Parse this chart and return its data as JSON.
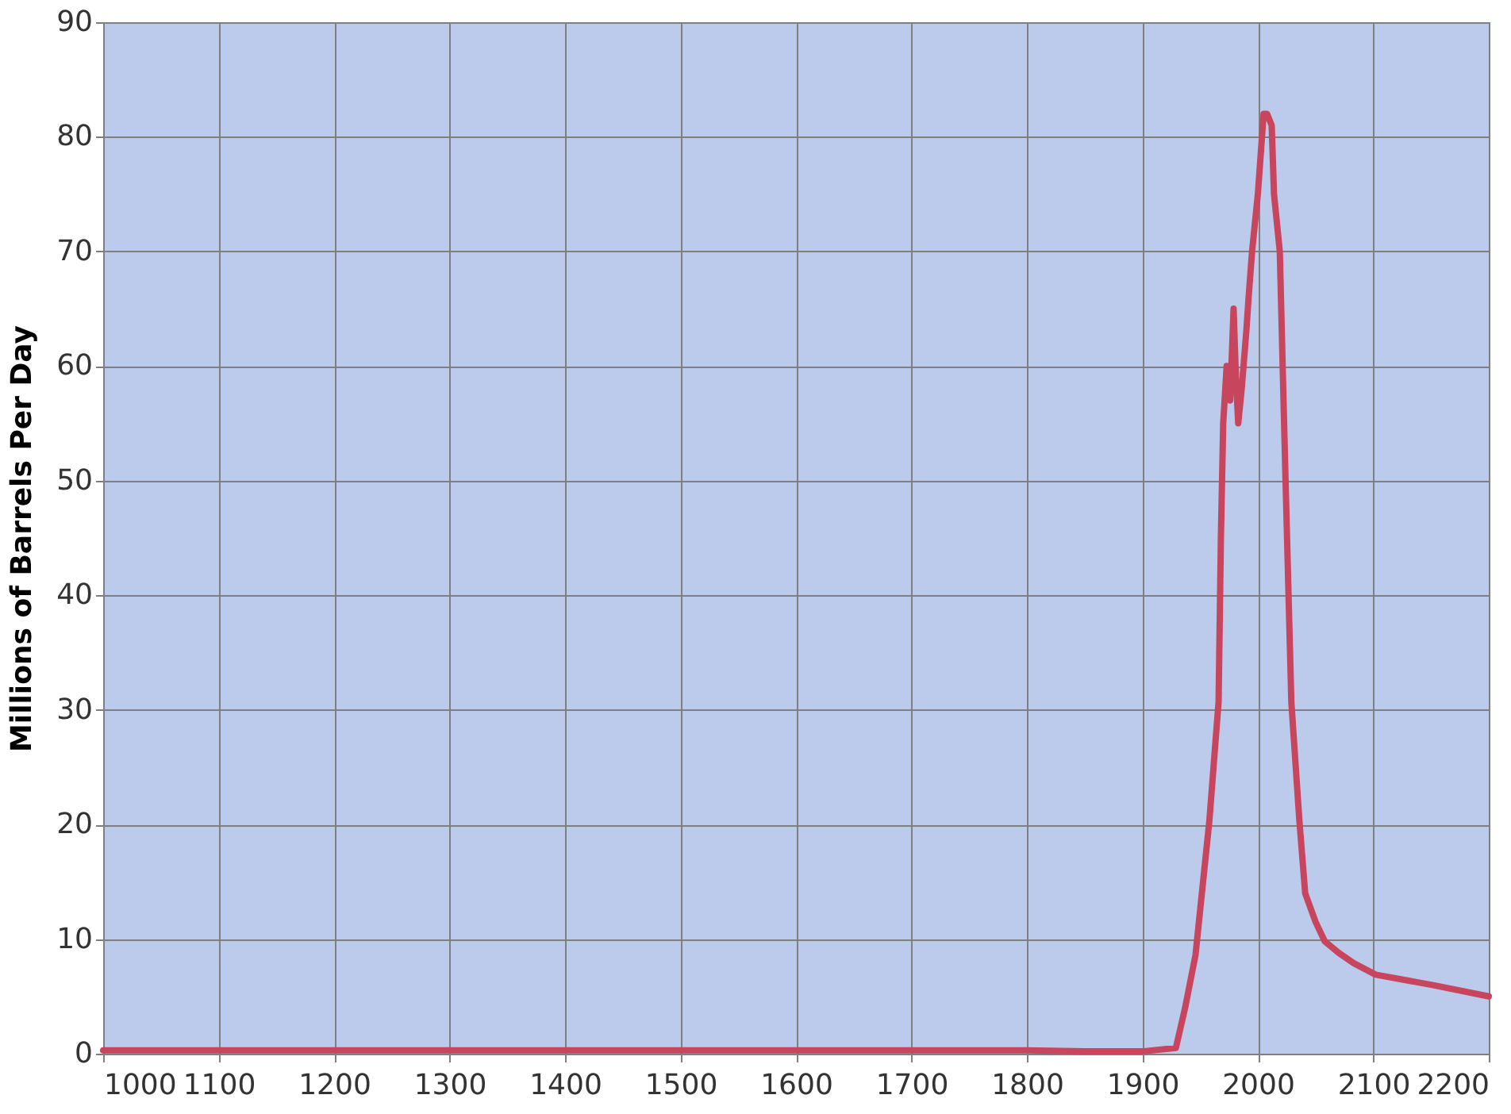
{
  "chart_data": {
    "type": "line",
    "ylabel": "Millions of Barrels Per Day",
    "x": [
      1000,
      1100,
      1200,
      1300,
      1400,
      1500,
      1600,
      1700,
      1800,
      1850,
      1900,
      1929,
      1937,
      1946,
      1958,
      1966,
      1968,
      1970,
      1973,
      1976,
      1979,
      1981,
      1983,
      1986,
      1990,
      1992,
      1995,
      2000,
      2005,
      2008,
      2012,
      2014,
      2019,
      2024,
      2029,
      2036,
      2041,
      2050,
      2058,
      2070,
      2083,
      2102,
      2151,
      2200
    ],
    "series": [
      {
        "color": "#c8455e",
        "values": [
          0.3,
          0.3,
          0.3,
          0.3,
          0.3,
          0.3,
          0.3,
          0.3,
          0.3,
          0.2,
          0.2,
          0.5,
          4.0,
          8.6,
          20.3,
          30.7,
          45,
          55,
          60,
          57,
          65,
          59,
          55,
          58,
          63,
          66,
          70,
          75,
          82,
          82,
          81,
          75,
          70,
          50,
          30.7,
          20.3,
          14,
          11.5,
          9.8,
          8.8,
          7.9,
          6.9,
          6.0,
          5.0
        ]
      }
    ],
    "xlim": [
      1000,
      2200
    ],
    "xticks": [
      1000,
      1100,
      1200,
      1300,
      1400,
      1500,
      1600,
      1700,
      1800,
      1900,
      2000,
      2100,
      2200
    ],
    "ylim": [
      0,
      90
    ],
    "yticks": [
      0,
      10,
      20,
      30,
      40,
      50,
      60,
      70,
      80,
      90
    ],
    "grid": true,
    "marker": "none",
    "line_style": "solid"
  }
}
